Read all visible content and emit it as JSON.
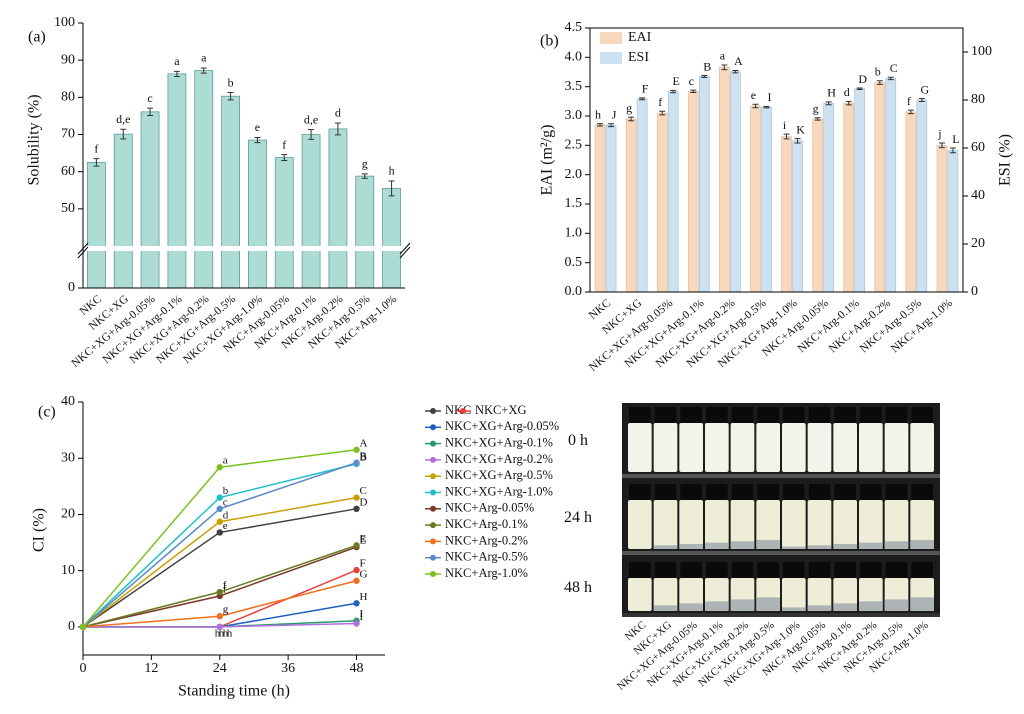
{
  "chart_data": [
    {
      "type": "bar",
      "panel_label": "(a)",
      "y_label": "Solubility (%)",
      "categories": [
        "NKC",
        "NKC+XG",
        "NKC+XG+Arg-0.05%",
        "NKC+XG+Arg-0.1%",
        "NKC+XG+Arg-0.2%",
        "NKC+XG+Arg-0.5%",
        "NKC+XG+Arg-1.0%",
        "NKC+Arg-0.05%",
        "NKC+Arg-0.1%",
        "NKC+Arg-0.2%",
        "NKC+Arg-0.5%",
        "NKC+Arg-1.0%"
      ],
      "values": [
        62.5,
        70.1,
        76.1,
        86.3,
        87.2,
        80.3,
        68.5,
        63.8,
        70.0,
        71.5,
        58.8,
        55.5
      ],
      "errors": [
        1.0,
        1.3,
        1.0,
        0.7,
        0.7,
        1.0,
        0.7,
        0.8,
        1.3,
        1.6,
        0.6,
        2.0
      ],
      "letters": [
        "f",
        "d,e",
        "c",
        "a",
        "a",
        "b",
        "e",
        "f",
        "d,e",
        "d",
        "g",
        "h"
      ],
      "color": "#acdcd4",
      "edge_color": "#5f9e95",
      "ylim": [
        0,
        100
      ],
      "ybreak": [
        10,
        40
      ],
      "yticks": [
        0,
        50,
        60,
        70,
        80,
        90,
        100
      ]
    },
    {
      "type": "grouped_bar",
      "panel_label": "(b)",
      "y_label": "EAI (m²/g)",
      "y2_label": "ESI (%)",
      "categories": [
        "NKC",
        "NKC+XG",
        "NKC+XG+Arg-0.05%",
        "NKC+XG+Arg-0.1%",
        "NKC+XG+Arg-0.2%",
        "NKC+XG+Arg-0.5%",
        "NKC+XG+Arg-1.0%",
        "NKC+Arg-0.05%",
        "NKC+Arg-0.1%",
        "NKC+Arg-0.2%",
        "NKC+Arg-0.5%",
        "NKC+Arg-1.0%"
      ],
      "series": [
        {
          "name": "EAI",
          "color": "#f8d8bc",
          "edge_color": "#e0b898",
          "values": [
            2.85,
            2.95,
            3.05,
            3.42,
            3.83,
            3.17,
            2.65,
            2.95,
            3.22,
            3.57,
            3.07,
            2.5
          ],
          "errors": [
            0.02,
            0.03,
            0.03,
            0.02,
            0.04,
            0.03,
            0.04,
            0.02,
            0.03,
            0.03,
            0.03,
            0.04
          ],
          "letters": [
            "h",
            "g",
            "f",
            "c",
            "a",
            "e",
            "i",
            "g",
            "d",
            "b",
            "f",
            "j"
          ]
        },
        {
          "name": "ESI",
          "axis": "y2",
          "color": "#cde1f1",
          "edge_color": "#9dbdd8",
          "values": [
            69.5,
            80.5,
            83.5,
            89.8,
            91.8,
            77.0,
            63.0,
            78.6,
            84.7,
            89.0,
            80.0,
            59.0
          ],
          "errors": [
            0.6,
            0.4,
            0.5,
            0.4,
            0.5,
            0.3,
            0.9,
            0.6,
            0.3,
            0.5,
            0.6,
            1.0
          ],
          "letters": [
            "J",
            "F",
            "E",
            "B",
            "A",
            "I",
            "K",
            "H",
            "D",
            "C",
            "G",
            "L"
          ]
        }
      ],
      "ylim": [
        0,
        4.5
      ],
      "yticks": [
        {
          "value": 0,
          "label": "0.0"
        },
        {
          "value": 0.5,
          "label": "0.5"
        },
        {
          "value": 1,
          "label": "1.0"
        },
        {
          "value": 1.5,
          "label": "1.5"
        },
        {
          "value": 2,
          "label": "2.0"
        },
        {
          "value": 2.5,
          "label": "2.5"
        },
        {
          "value": 3,
          "label": "3.0"
        },
        {
          "value": 3.5,
          "label": "3.5"
        },
        {
          "value": 4,
          "label": "4.0"
        },
        {
          "value": 4.5,
          "label": "4.5"
        }
      ],
      "y2lim": [
        0,
        110
      ],
      "y2ticks": [
        0,
        20,
        40,
        60,
        80,
        100
      ],
      "legend": "upper left"
    },
    {
      "type": "line",
      "panel_label": "(c)",
      "x_label": "Standing time (h)",
      "y_label": "CI (%)",
      "x": [
        0,
        24,
        48
      ],
      "xlim": [
        0,
        53
      ],
      "xticks": [
        0,
        12,
        24,
        36,
        48
      ],
      "ylim": [
        -5,
        40
      ],
      "yticks": [
        0,
        10,
        20,
        30,
        40
      ],
      "series": [
        {
          "name": "NKC",
          "color": "#404040",
          "values": [
            0,
            16.8,
            21.0
          ],
          "point_labels": [
            null,
            "e",
            "D"
          ]
        },
        {
          "name": "NKC+XG",
          "color": "#e8413c",
          "values": [
            0,
            0,
            10.1
          ],
          "point_labels": [
            null,
            "h",
            "F"
          ]
        },
        {
          "name": "NKC+XG+Arg-0.05%",
          "color": "#1f5fbf",
          "values": [
            0,
            0,
            4.2
          ],
          "point_labels": [
            null,
            "h",
            "H"
          ]
        },
        {
          "name": "NKC+XG+Arg-0.1%",
          "color": "#2a9a6a",
          "values": [
            0,
            0,
            1.1
          ],
          "point_labels": [
            null,
            "h",
            "I"
          ]
        },
        {
          "name": "NKC+XG+Arg-0.2%",
          "color": "#b070e0",
          "values": [
            0,
            0,
            0.6
          ],
          "point_labels": [
            null,
            "h",
            "I"
          ]
        },
        {
          "name": "NKC+XG+Arg-0.5%",
          "color": "#c8a000",
          "values": [
            0,
            18.7,
            23.0
          ],
          "point_labels": [
            null,
            "d",
            "C"
          ]
        },
        {
          "name": "NKC+XG+Arg-1.0%",
          "color": "#20c0c8",
          "values": [
            0,
            23.0,
            29.0
          ],
          "point_labels": [
            null,
            "b",
            "B"
          ]
        },
        {
          "name": "NKC+Arg-0.05%",
          "color": "#7a3a2a",
          "values": [
            0,
            5.5,
            14.2
          ],
          "point_labels": [
            null,
            "f",
            "E"
          ]
        },
        {
          "name": "NKC+Arg-0.1%",
          "color": "#6a7a20",
          "values": [
            0,
            6.2,
            14.5
          ],
          "point_labels": [
            null,
            "f",
            "E"
          ]
        },
        {
          "name": "NKC+Arg-0.2%",
          "color": "#f07020",
          "values": [
            0,
            1.9,
            8.2
          ],
          "point_labels": [
            null,
            "g",
            "G"
          ]
        },
        {
          "name": "NKC+Arg-0.5%",
          "color": "#5a8ac8",
          "values": [
            0,
            21.0,
            29.2
          ],
          "point_labels": [
            null,
            "c",
            "B"
          ]
        },
        {
          "name": "NKC+Arg-1.0%",
          "color": "#7ac020",
          "values": [
            0,
            28.4,
            31.5
          ],
          "point_labels": [
            null,
            "a",
            "A"
          ]
        }
      ]
    }
  ],
  "photo": {
    "row_labels": [
      "0 h",
      "24 h",
      "48 h"
    ],
    "sample_labels": [
      "NKC",
      "NKC+XG",
      "NKC+XG+Arg-0.05%",
      "NKC+XG+Arg-0.1%",
      "NKC+XG+Arg-0.2%",
      "NKC+XG+Arg-0.5%",
      "NKC+XG+Arg-1.0%",
      "NKC+Arg-0.05%",
      "NKC+Arg-0.1%",
      "NKC+Arg-0.2%",
      "NKC+Arg-0.5%",
      "NKC+Arg-1.0%"
    ]
  }
}
